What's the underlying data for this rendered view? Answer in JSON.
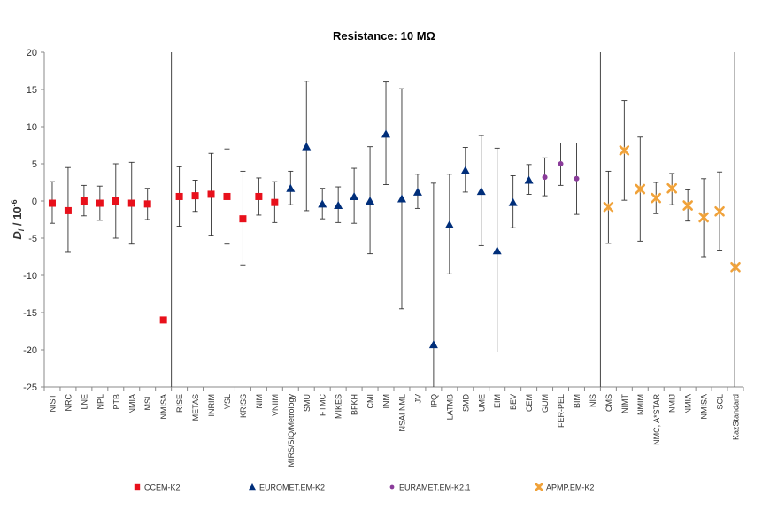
{
  "chart_data": {
    "type": "scatter",
    "title": "Resistance: 10 MΩ",
    "ylabel_main": "D",
    "ylabel_sub": "i",
    "ylabel_unit": " / 10",
    "ylabel_exp": "-6",
    "ylim": [
      -25,
      20
    ],
    "yticks": [
      -25,
      -20,
      -15,
      -10,
      -5,
      0,
      5,
      10,
      15,
      20
    ],
    "grid": false,
    "legend_position": "bottom",
    "categories": [
      "NIST",
      "NRC",
      "LNE",
      "NPL",
      "PTB",
      "NMIA",
      "MSL",
      "NMISA",
      "RISE",
      "METAS",
      "INRIM",
      "VSL",
      "KRISS",
      "NIM",
      "VNIIM",
      "MIRS/SIQ/Metrology",
      "SMU",
      "FTMC",
      "MIKES",
      "BFKH",
      "CMI",
      "INM",
      "NSAI NML",
      "JV",
      "IPQ",
      "LATMB",
      "SMD",
      "UME",
      "EIM",
      "BEV",
      "CEM",
      "GUM",
      "FER-PEL",
      "BIM",
      "NIS",
      "CMS",
      "NIMT",
      "NMIM",
      "NMC, A*STAR",
      "NMIJ",
      "NMIA",
      "NMISA",
      "SCL",
      "KazStandard"
    ],
    "separators_after": [
      "NMISA",
      "NIS",
      "SCL"
    ],
    "series": [
      {
        "name": "CCEM-K2",
        "marker": "square",
        "color": "#e8101b",
        "points": [
          {
            "x": "NIST",
            "y": -0.3,
            "low": -3.0,
            "high": 2.6
          },
          {
            "x": "NRC",
            "y": -1.3,
            "low": -6.9,
            "high": 4.5
          },
          {
            "x": "LNE",
            "y": 0.0,
            "low": -2.0,
            "high": 2.1
          },
          {
            "x": "NPL",
            "y": -0.3,
            "low": -2.6,
            "high": 2.0
          },
          {
            "x": "PTB",
            "y": 0.0,
            "low": -5.0,
            "high": 5.0
          },
          {
            "x": "NMIA",
            "y": -0.3,
            "low": -5.8,
            "high": 5.2
          },
          {
            "x": "MSL",
            "y": -0.4,
            "low": -2.5,
            "high": 1.7
          },
          {
            "x": "NMISA",
            "y": -16.0,
            "low": null,
            "high": null
          },
          {
            "x": "RISE",
            "y": 0.6,
            "low": -3.4,
            "high": 4.6
          },
          {
            "x": "METAS",
            "y": 0.7,
            "low": -1.4,
            "high": 2.8
          },
          {
            "x": "INRIM",
            "y": 0.9,
            "low": -4.6,
            "high": 6.4
          },
          {
            "x": "VSL",
            "y": 0.6,
            "low": -5.8,
            "high": 7.0
          },
          {
            "x": "KRISS",
            "y": -2.4,
            "low": -8.6,
            "high": 4.0
          },
          {
            "x": "NIM",
            "y": 0.6,
            "low": -1.9,
            "high": 3.1
          },
          {
            "x": "VNIIM",
            "y": -0.2,
            "low": -2.9,
            "high": 2.6
          }
        ]
      },
      {
        "name": "EUROMET.EM-K2",
        "marker": "triangle",
        "color": "#002e7a",
        "points": [
          {
            "x": "MIRS/SIQ/Metrology",
            "y": 1.7,
            "low": -0.5,
            "high": 4.0
          },
          {
            "x": "SMU",
            "y": 7.3,
            "low": -1.3,
            "high": 16.1
          },
          {
            "x": "FTMC",
            "y": -0.4,
            "low": -2.4,
            "high": 1.7
          },
          {
            "x": "MIKES",
            "y": -0.6,
            "low": -2.9,
            "high": 1.9
          },
          {
            "x": "BFKH",
            "y": 0.6,
            "low": -3.0,
            "high": 4.4
          },
          {
            "x": "CMI",
            "y": 0.0,
            "low": -7.1,
            "high": 7.3
          },
          {
            "x": "INM",
            "y": 9.0,
            "low": 2.2,
            "high": 16.0
          },
          {
            "x": "NSAI NML",
            "y": 0.3,
            "low": -14.5,
            "high": 15.1
          },
          {
            "x": "JV",
            "y": 1.2,
            "low": -1.0,
            "high": 3.6
          },
          {
            "x": "IPQ",
            "y": -19.3,
            "low": -25,
            "high": 2.4
          },
          {
            "x": "LATMB",
            "y": -3.2,
            "low": -9.8,
            "high": 3.6
          },
          {
            "x": "SMD",
            "y": 4.1,
            "low": 1.2,
            "high": 7.2
          },
          {
            "x": "UME",
            "y": 1.3,
            "low": -6.0,
            "high": 8.8
          },
          {
            "x": "EIM",
            "y": -6.7,
            "low": -20.3,
            "high": 7.1
          },
          {
            "x": "BEV",
            "y": -0.2,
            "low": -3.6,
            "high": 3.4
          },
          {
            "x": "CEM",
            "y": 2.8,
            "low": 0.9,
            "high": 4.9
          }
        ]
      },
      {
        "name": "EURAMET.EM-K2.1",
        "marker": "circle",
        "color": "#8a3c9a",
        "points": [
          {
            "x": "GUM",
            "y": 3.2,
            "low": 0.7,
            "high": 5.8
          },
          {
            "x": "FER-PEL",
            "y": 5.0,
            "low": 2.1,
            "high": 7.8
          },
          {
            "x": "BIM",
            "y": 3.0,
            "low": -1.8,
            "high": 7.8
          }
        ]
      },
      {
        "name": "APMP.EM-K2",
        "marker": "star",
        "color": "#f0a23a",
        "points": [
          {
            "x": "CMS",
            "y": -0.8,
            "low": -5.7,
            "high": 4.0
          },
          {
            "x": "NIMT",
            "y": 6.8,
            "low": 0.1,
            "high": 13.5
          },
          {
            "x": "NMIM",
            "y": 1.6,
            "low": -5.4,
            "high": 8.6
          },
          {
            "x": "NMC, A*STAR",
            "y": 0.4,
            "low": -1.7,
            "high": 2.5
          },
          {
            "x": "NMIJ",
            "y": 1.7,
            "low": -0.5,
            "high": 3.7
          },
          {
            "x": "NMIA",
            "y": -0.6,
            "low": -2.7,
            "high": 1.5
          },
          {
            "x": "NMISA",
            "y": -2.2,
            "low": -7.5,
            "high": 3.0
          },
          {
            "x": "SCL",
            "y": -1.4,
            "low": -6.6,
            "high": 3.9
          },
          {
            "x": "KazStandard",
            "y": -8.9,
            "low": null,
            "high": null
          }
        ]
      }
    ]
  }
}
